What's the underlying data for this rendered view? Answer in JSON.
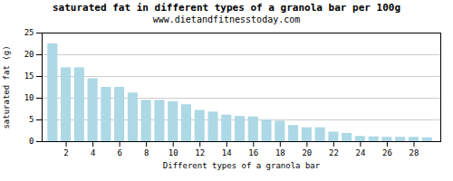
{
  "chart_data": {
    "type": "bar",
    "title": "saturated fat in different types of a granola bar per 100g",
    "subtitle": "www.dietandfitnesstoday.com",
    "xlabel": "Different types of a granola bar",
    "ylabel": "saturated fat (g)",
    "x": [
      1,
      2,
      3,
      4,
      5,
      6,
      7,
      8,
      9,
      10,
      11,
      12,
      13,
      14,
      15,
      16,
      17,
      18,
      19,
      20,
      21,
      22,
      23,
      24,
      25,
      26,
      27,
      28,
      29
    ],
    "values": [
      22.5,
      17.0,
      17.0,
      14.5,
      12.5,
      12.5,
      11.2,
      9.5,
      9.5,
      9.2,
      8.5,
      7.2,
      6.8,
      6.1,
      5.8,
      5.7,
      5.0,
      4.7,
      3.7,
      3.2,
      3.2,
      2.2,
      1.9,
      1.2,
      1.1,
      1.0,
      1.0,
      1.0,
      0.9
    ],
    "color": "#add8e6",
    "xlim": [
      0.2,
      30
    ],
    "xticks": [
      2,
      4,
      6,
      8,
      10,
      12,
      14,
      16,
      18,
      20,
      22,
      24,
      26,
      28
    ],
    "ylim": [
      0,
      25
    ],
    "yticks": [
      0,
      5,
      10,
      15,
      20,
      25
    ],
    "grid": true
  }
}
